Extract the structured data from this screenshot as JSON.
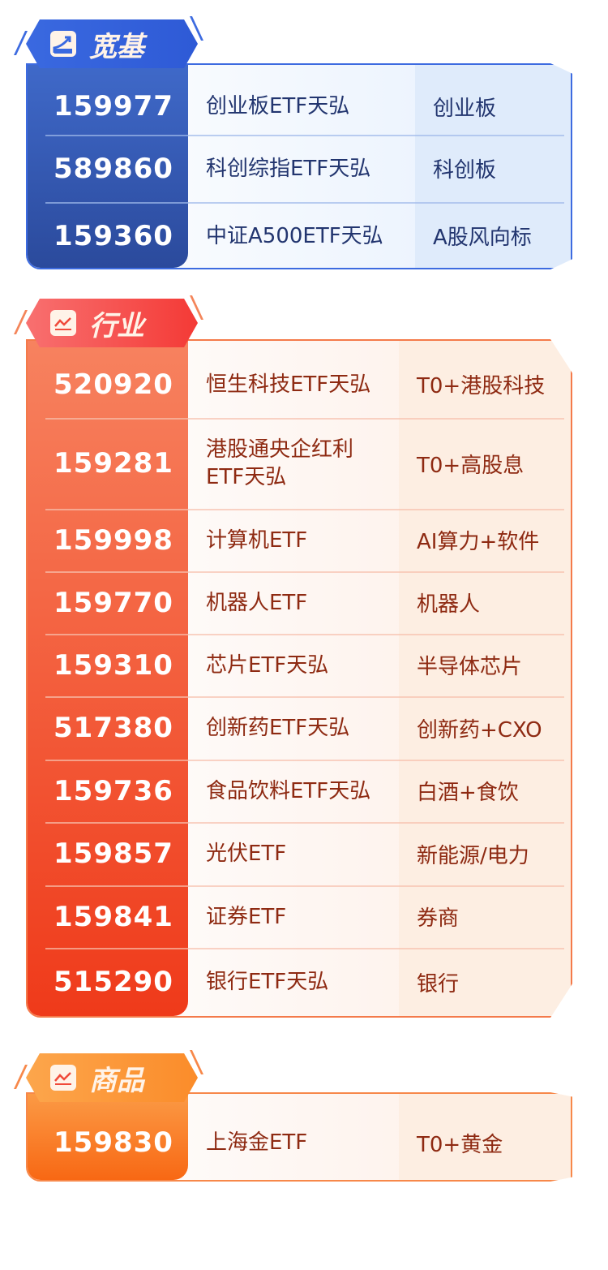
{
  "sections": [
    {
      "title": "宽基",
      "icon": "trend-up-icon",
      "accent": "#2f52b4",
      "rows": [
        {
          "code": "159977",
          "name": "创业板ETF天弘",
          "tag": "创业板"
        },
        {
          "code": "589860",
          "name": "科创综指ETF天弘",
          "tag": "科创板"
        },
        {
          "code": "159360",
          "name": "中证A500ETF天弘",
          "tag": "A股风向标"
        }
      ]
    },
    {
      "title": "行业",
      "icon": "line-chart-icon",
      "accent": "#f0542a",
      "rows": [
        {
          "code": "520920",
          "name": "恒生科技ETF天弘",
          "tag": "T0+港股科技"
        },
        {
          "code": "159281",
          "name": "港股通央企红利ETF天弘",
          "tag": "T0+高股息"
        },
        {
          "code": "159998",
          "name": "计算机ETF",
          "tag": "AI算力+软件"
        },
        {
          "code": "159770",
          "name": "机器人ETF",
          "tag": "机器人"
        },
        {
          "code": "159310",
          "name": "芯片ETF天弘",
          "tag": "半导体芯片"
        },
        {
          "code": "517380",
          "name": "创新药ETF天弘",
          "tag": "创新药+CXO"
        },
        {
          "code": "159736",
          "name": "食品饮料ETF天弘",
          "tag": "白酒+食饮"
        },
        {
          "code": "159857",
          "name": "光伏ETF",
          "tag": "新能源/电力"
        },
        {
          "code": "159841",
          "name": "证券ETF",
          "tag": "券商"
        },
        {
          "code": "515290",
          "name": "银行ETF天弘",
          "tag": "银行"
        }
      ]
    },
    {
      "title": "商品",
      "icon": "line-chart-icon",
      "accent": "#f97a18",
      "rows": [
        {
          "code": "159830",
          "name": "上海金ETF",
          "tag": "T0+黄金"
        }
      ]
    }
  ]
}
